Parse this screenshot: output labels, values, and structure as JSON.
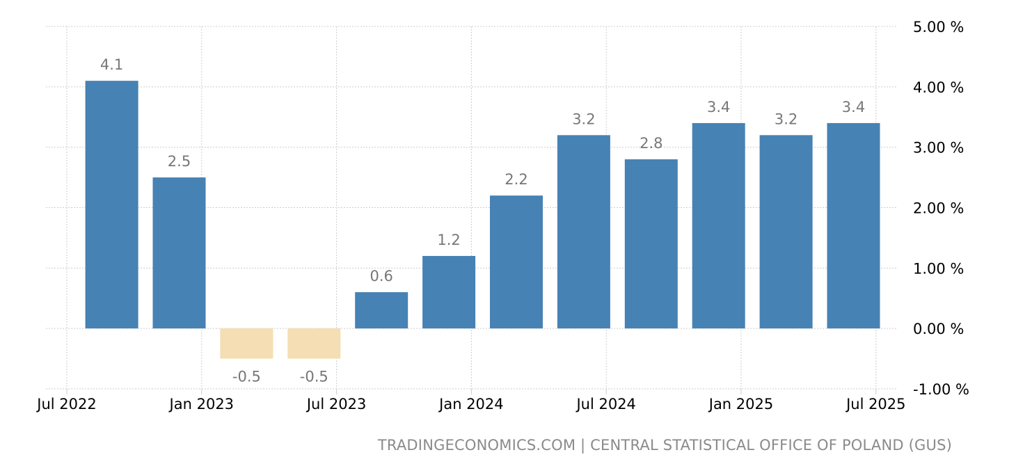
{
  "chart_data": {
    "type": "bar",
    "x": [
      "2022-09",
      "2022-12",
      "2023-03",
      "2023-06",
      "2023-09",
      "2023-12",
      "2024-03",
      "2024-06",
      "2024-09",
      "2024-12",
      "2025-03",
      "2025-06"
    ],
    "values": [
      4.1,
      2.5,
      -0.5,
      -0.5,
      0.6,
      1.2,
      2.2,
      3.2,
      2.8,
      3.4,
      3.2,
      3.4
    ],
    "data_labels": [
      "4.1",
      "2.5",
      "-0.5",
      "-0.5",
      "0.6",
      "1.2",
      "2.2",
      "3.2",
      "2.8",
      "3.4",
      "3.2",
      "3.4"
    ],
    "ylim": [
      -1,
      5
    ],
    "y_ticks": [
      5,
      4,
      3,
      2,
      1,
      0,
      -1
    ],
    "y_tick_labels": [
      "5.00 %",
      "4.00 %",
      "3.00 %",
      "2.00 %",
      "1.00 %",
      "0.00 %",
      "-1.00 %"
    ],
    "x_ticks": [
      "2022-07",
      "2023-01",
      "2023-07",
      "2024-01",
      "2024-07",
      "2025-01",
      "2025-07"
    ],
    "x_tick_labels": [
      "Jul 2022",
      "Jan 2023",
      "Jul 2023",
      "Jan 2024",
      "Jul 2024",
      "Jan 2025",
      "Jul 2025"
    ],
    "y_axis_position": "right",
    "grid": true,
    "colors": {
      "positive": "#4682b4",
      "negative": "#f5deb3",
      "data_label": "#777777",
      "grid": "#cccccc"
    }
  },
  "source": "TRADINGECONOMICS.COM | CENTRAL STATISTICAL OFFICE OF POLAND (GUS)"
}
